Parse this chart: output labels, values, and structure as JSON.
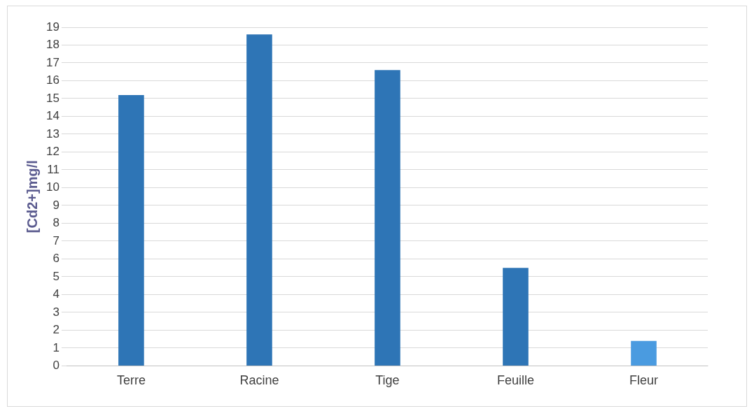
{
  "chart_data": {
    "type": "bar",
    "ylabel": "[Cd2+]mg/l",
    "categories": [
      "Terre",
      "Racine",
      "Tige",
      "Feuille",
      "Fleur"
    ],
    "values": [
      15.2,
      18.6,
      16.6,
      5.5,
      1.4
    ],
    "colors": [
      "#2e75b6",
      "#2e75b6",
      "#2e75b6",
      "#2e75b6",
      "#4a9be0"
    ],
    "ylim": [
      0,
      19
    ],
    "yticks": [
      0,
      1,
      2,
      3,
      4,
      5,
      6,
      7,
      8,
      9,
      10,
      11,
      12,
      13,
      14,
      15,
      16,
      17,
      18,
      19
    ],
    "grid": "y",
    "legend": false
  }
}
